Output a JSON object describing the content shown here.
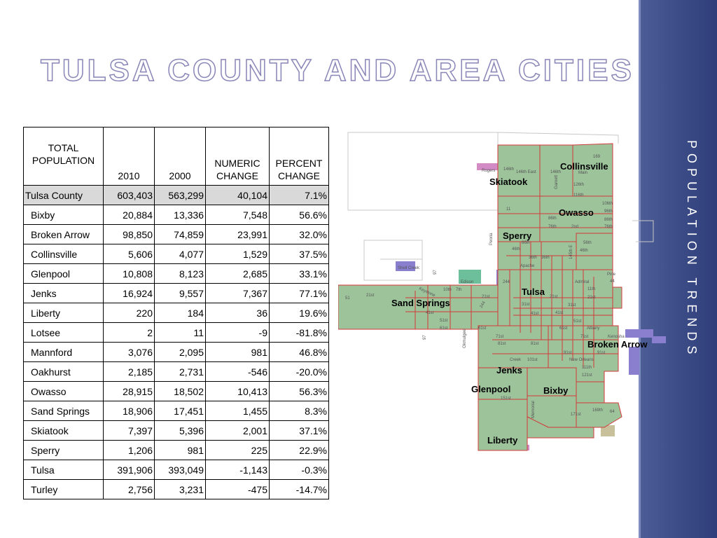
{
  "title": "TULSA COUNTY AND AREA CITIES",
  "sidebar_label": "POPULATION TRENDS",
  "table": {
    "headers": [
      "TOTAL POPULATION",
      "2010",
      "2000",
      "NUMERIC CHANGE",
      "PERCENT CHANGE"
    ],
    "rows": [
      [
        "Tulsa County",
        "603,403",
        "563,299",
        "40,104",
        "7.1%"
      ],
      [
        "Bixby",
        "20,884",
        "13,336",
        "7,548",
        "56.6%"
      ],
      [
        "Broken Arrow",
        "98,850",
        "74,859",
        "23,991",
        "32.0%"
      ],
      [
        "Collinsville",
        "5,606",
        "4,077",
        "1,529",
        "37.5%"
      ],
      [
        "Glenpool",
        "10,808",
        "8,123",
        "2,685",
        "33.1%"
      ],
      [
        "Jenks",
        "16,924",
        "9,557",
        "7,367",
        "77.1%"
      ],
      [
        "Liberty",
        "220",
        "184",
        "36",
        "19.6%"
      ],
      [
        "Lotsee",
        "2",
        "11",
        "-9",
        "-81.8%"
      ],
      [
        "Mannford",
        "3,076",
        "2,095",
        "981",
        "46.8%"
      ],
      [
        "Oakhurst",
        "2,185",
        "2,731",
        "-546",
        "-20.0%"
      ],
      [
        "Owasso",
        "28,915",
        "18,502",
        "10,413",
        "56.3%"
      ],
      [
        "Sand Springs",
        "18,906",
        "17,451",
        "1,455",
        "8.3%"
      ],
      [
        "Skiatook",
        "7,397",
        "5,396",
        "2,001",
        "37.1%"
      ],
      [
        "Sperry",
        "1,206",
        "981",
        "225",
        "22.9%"
      ],
      [
        "Tulsa",
        "391,906",
        "393,049",
        "-1,143",
        "-0.3%"
      ],
      [
        "Turley",
        "2,756",
        "3,231",
        "-475",
        "-14.7%"
      ]
    ]
  },
  "map": {
    "cities": [
      "Collinsville",
      "Skiatook",
      "Owasso",
      "Sperry",
      "Tulsa",
      "Sand Springs",
      "Broken Arrow",
      "Jenks",
      "Glenpool",
      "Bixby",
      "Liberty"
    ],
    "roads": [
      "169",
      "Rogers",
      "146th",
      "146th East",
      "146th",
      "Garnett",
      "169",
      "Main",
      "D",
      "126th",
      "116th",
      "11",
      "75",
      "106th",
      "96th",
      "86th",
      "76th",
      "86th",
      "76th",
      "2nd",
      "Peoria",
      "56th",
      "46th",
      "66th",
      "46th",
      "36th",
      "36th",
      "Apache",
      "145th E",
      "Mingo",
      "97",
      "Shell Creek",
      "Edison",
      "244",
      "Admiral",
      "Pine",
      "44",
      "11th",
      "21st",
      "Keystone",
      "10th",
      "7th",
      "51",
      "21st",
      "21st",
      "21st",
      "31st",
      "41st",
      "41st",
      "51st",
      "51st",
      "61st",
      "61st",
      "61st",
      "97",
      "Albany",
      "Kenosha",
      "71st",
      "71st",
      "81st",
      "81st",
      "91st",
      "91st",
      "Okmulgee",
      "Creek",
      "101st",
      "New Orleans",
      "111th",
      "121st",
      "151st",
      "171st",
      "169th",
      "64",
      "Memorial"
    ],
    "colors": {
      "city": "#9dc39b",
      "border": "#d23a3a",
      "road": "#aaaaaa",
      "water": "#8a7fcf",
      "park": "#6cbf9a",
      "pink": "#d28bc5",
      "tan": "#c8c09a"
    }
  }
}
